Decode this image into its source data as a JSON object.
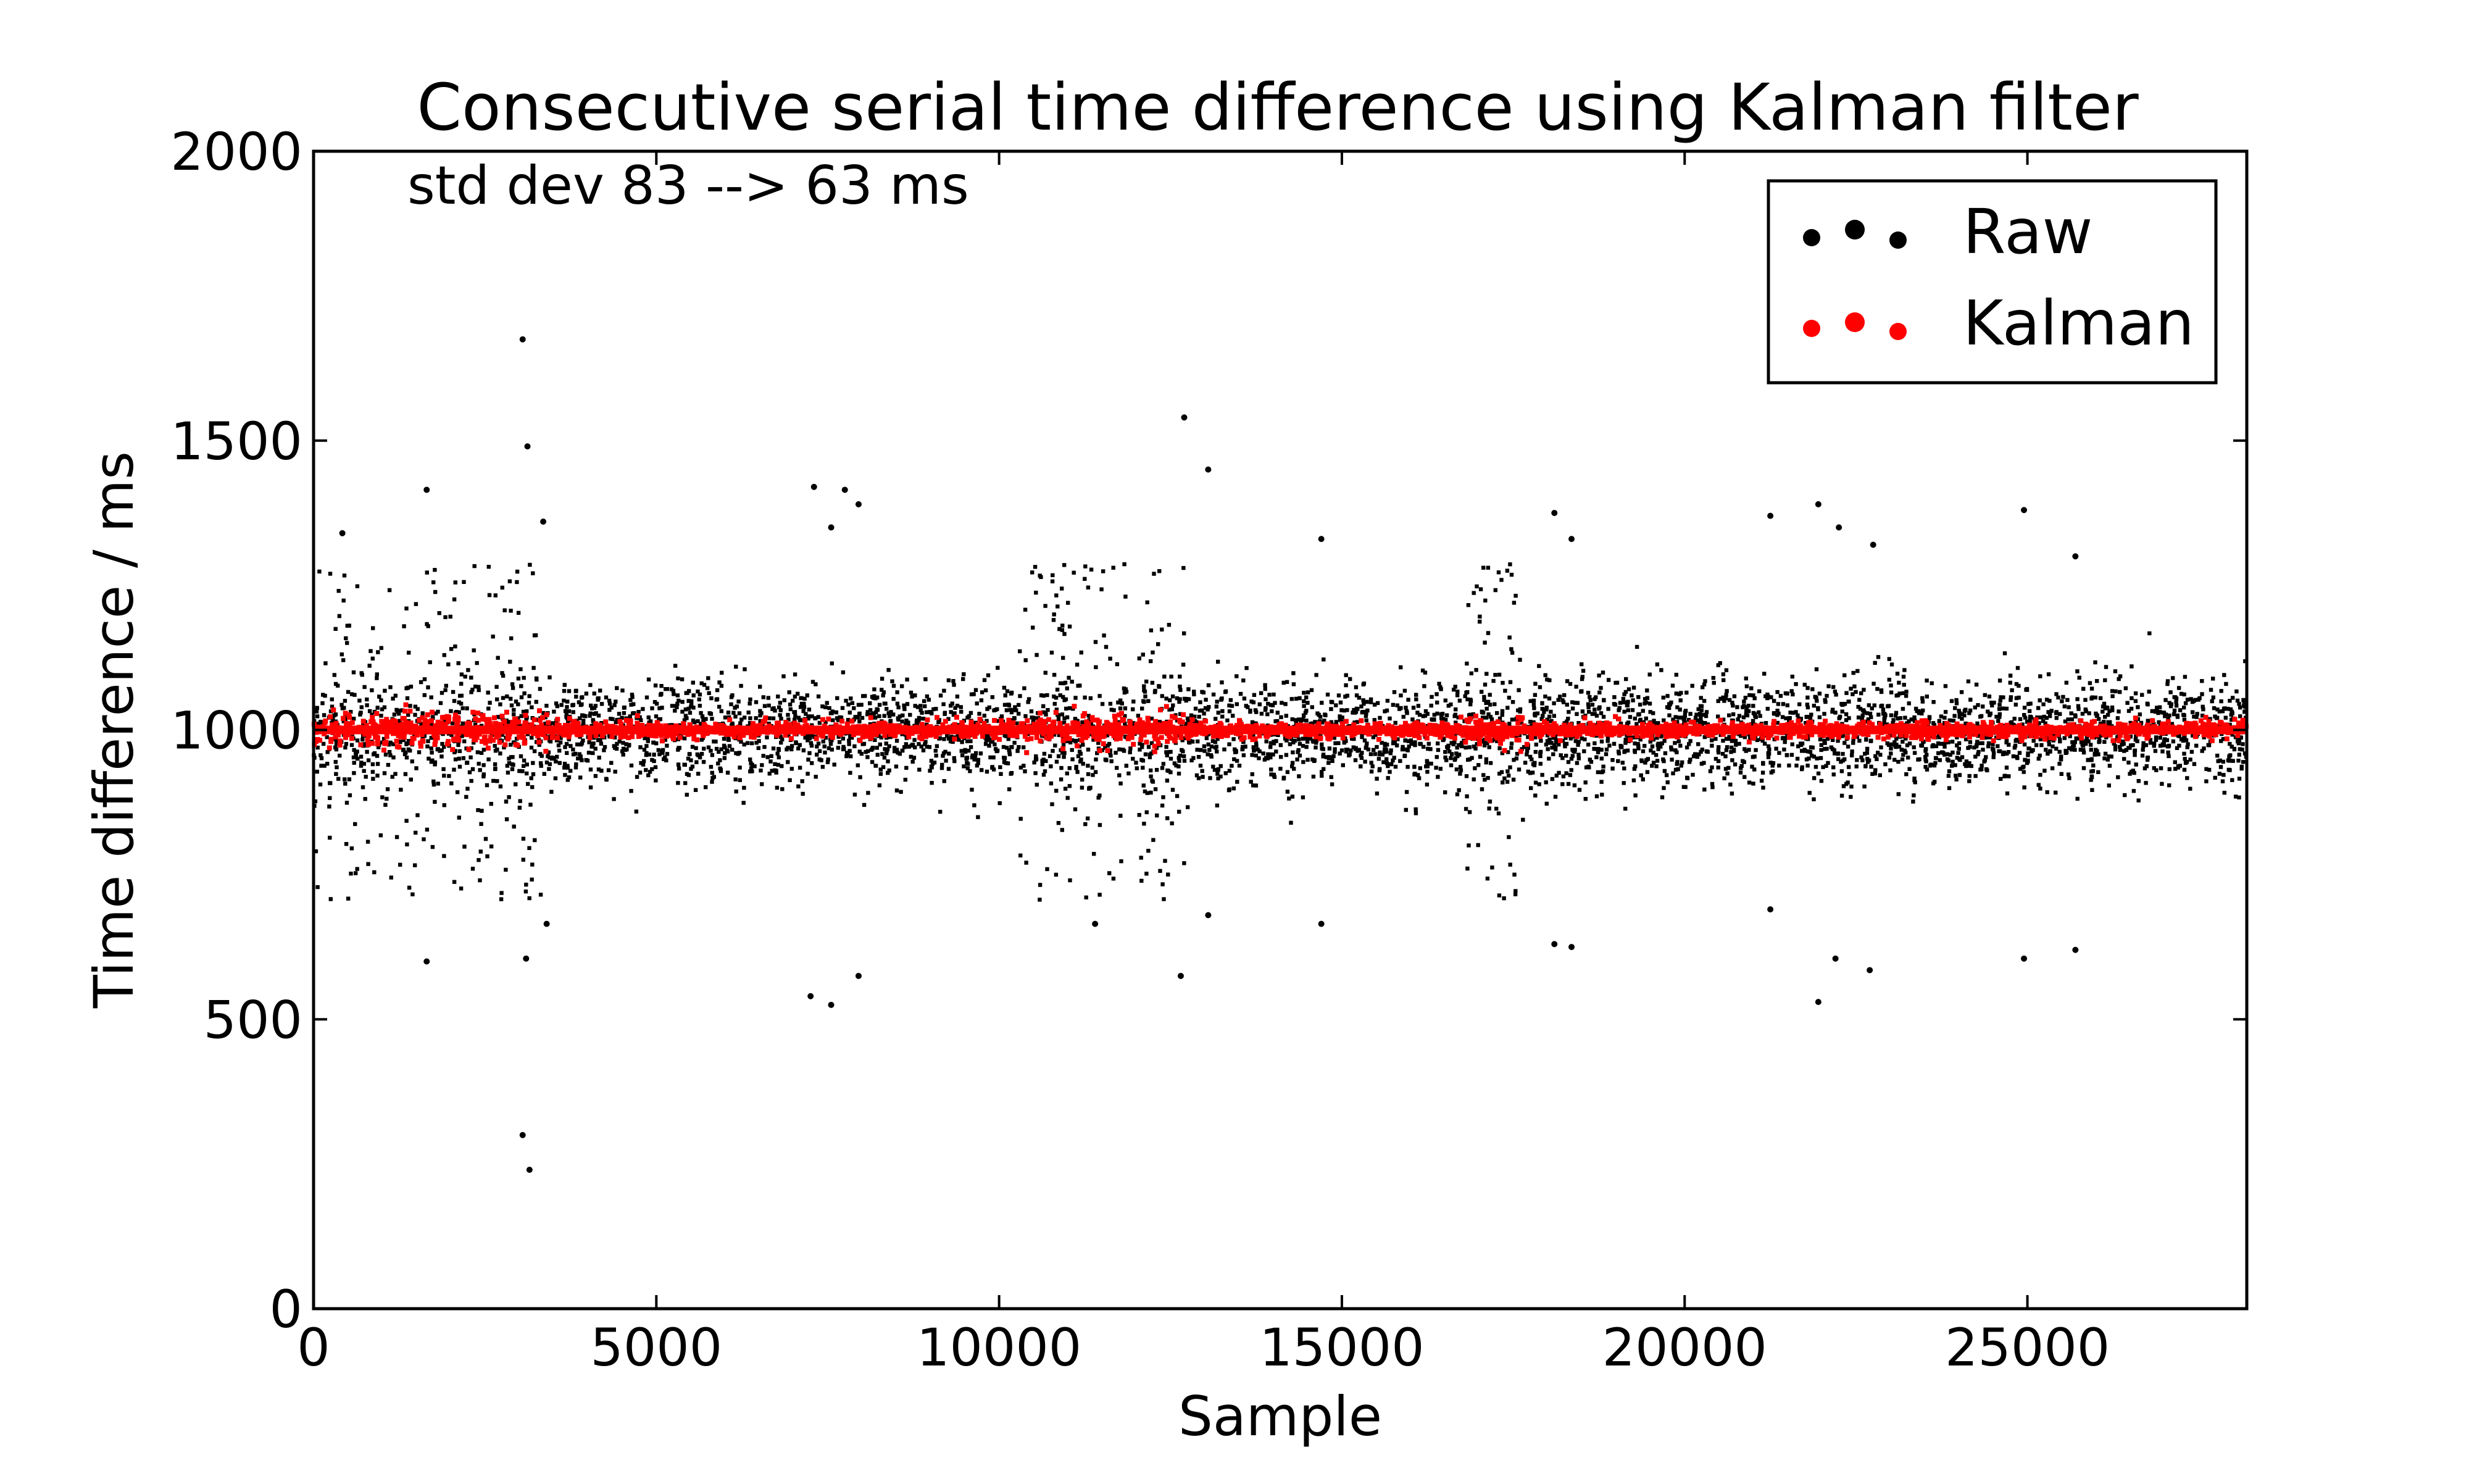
{
  "chart_data": {
    "type": "scatter",
    "title": "Consecutive serial time difference using Kalman filter",
    "xlabel": "Sample",
    "ylabel": "Time difference / ms",
    "xlim": [
      0,
      28200
    ],
    "ylim": [
      0,
      2000
    ],
    "xticks": [
      0,
      5000,
      10000,
      15000,
      20000,
      25000
    ],
    "yticks": [
      0,
      500,
      1000,
      1500,
      2000
    ],
    "xtick_labels": [
      "0",
      "5000",
      "10000",
      "15000",
      "20000",
      "25000"
    ],
    "ytick_labels": [
      "0",
      "500",
      "1000",
      "1500",
      "2000"
    ],
    "grid": false,
    "legend_position": "top-right",
    "annotation": "std dev 83 --> 63 ms",
    "series": [
      {
        "name": "Raw",
        "color": "#000000",
        "baseline": 1000,
        "std_dev": 83,
        "n_samples": 28200,
        "noisy_regions": [
          [
            0,
            3400
          ],
          [
            10300,
            12700
          ],
          [
            16800,
            17700
          ]
        ],
        "outliers": [
          {
            "x": 3050,
            "y": 1675
          },
          {
            "x": 3120,
            "y": 1490
          },
          {
            "x": 1650,
            "y": 1415
          },
          {
            "x": 420,
            "y": 1340
          },
          {
            "x": 3350,
            "y": 1360
          },
          {
            "x": 7300,
            "y": 1420
          },
          {
            "x": 7750,
            "y": 1415
          },
          {
            "x": 7550,
            "y": 1350
          },
          {
            "x": 7950,
            "y": 1390
          },
          {
            "x": 12700,
            "y": 1540
          },
          {
            "x": 13050,
            "y": 1450
          },
          {
            "x": 14700,
            "y": 1330
          },
          {
            "x": 18100,
            "y": 1375
          },
          {
            "x": 18350,
            "y": 1330
          },
          {
            "x": 21250,
            "y": 1370
          },
          {
            "x": 21950,
            "y": 1390
          },
          {
            "x": 22250,
            "y": 1350
          },
          {
            "x": 22750,
            "y": 1320
          },
          {
            "x": 24950,
            "y": 1380
          },
          {
            "x": 25700,
            "y": 1300
          },
          {
            "x": 1650,
            "y": 600
          },
          {
            "x": 3100,
            "y": 605
          },
          {
            "x": 3400,
            "y": 665
          },
          {
            "x": 7250,
            "y": 540
          },
          {
            "x": 7550,
            "y": 525
          },
          {
            "x": 7950,
            "y": 575
          },
          {
            "x": 11400,
            "y": 665
          },
          {
            "x": 12650,
            "y": 575
          },
          {
            "x": 13050,
            "y": 680
          },
          {
            "x": 14700,
            "y": 665
          },
          {
            "x": 18100,
            "y": 630
          },
          {
            "x": 18350,
            "y": 625
          },
          {
            "x": 21250,
            "y": 690
          },
          {
            "x": 21950,
            "y": 530
          },
          {
            "x": 22200,
            "y": 605
          },
          {
            "x": 22700,
            "y": 585
          },
          {
            "x": 24950,
            "y": 605
          },
          {
            "x": 25700,
            "y": 620
          },
          {
            "x": 3050,
            "y": 300
          },
          {
            "x": 3150,
            "y": 240
          }
        ]
      },
      {
        "name": "Kalman",
        "color": "#ff0000",
        "baseline": 1000,
        "std_dev": 63
      }
    ]
  }
}
